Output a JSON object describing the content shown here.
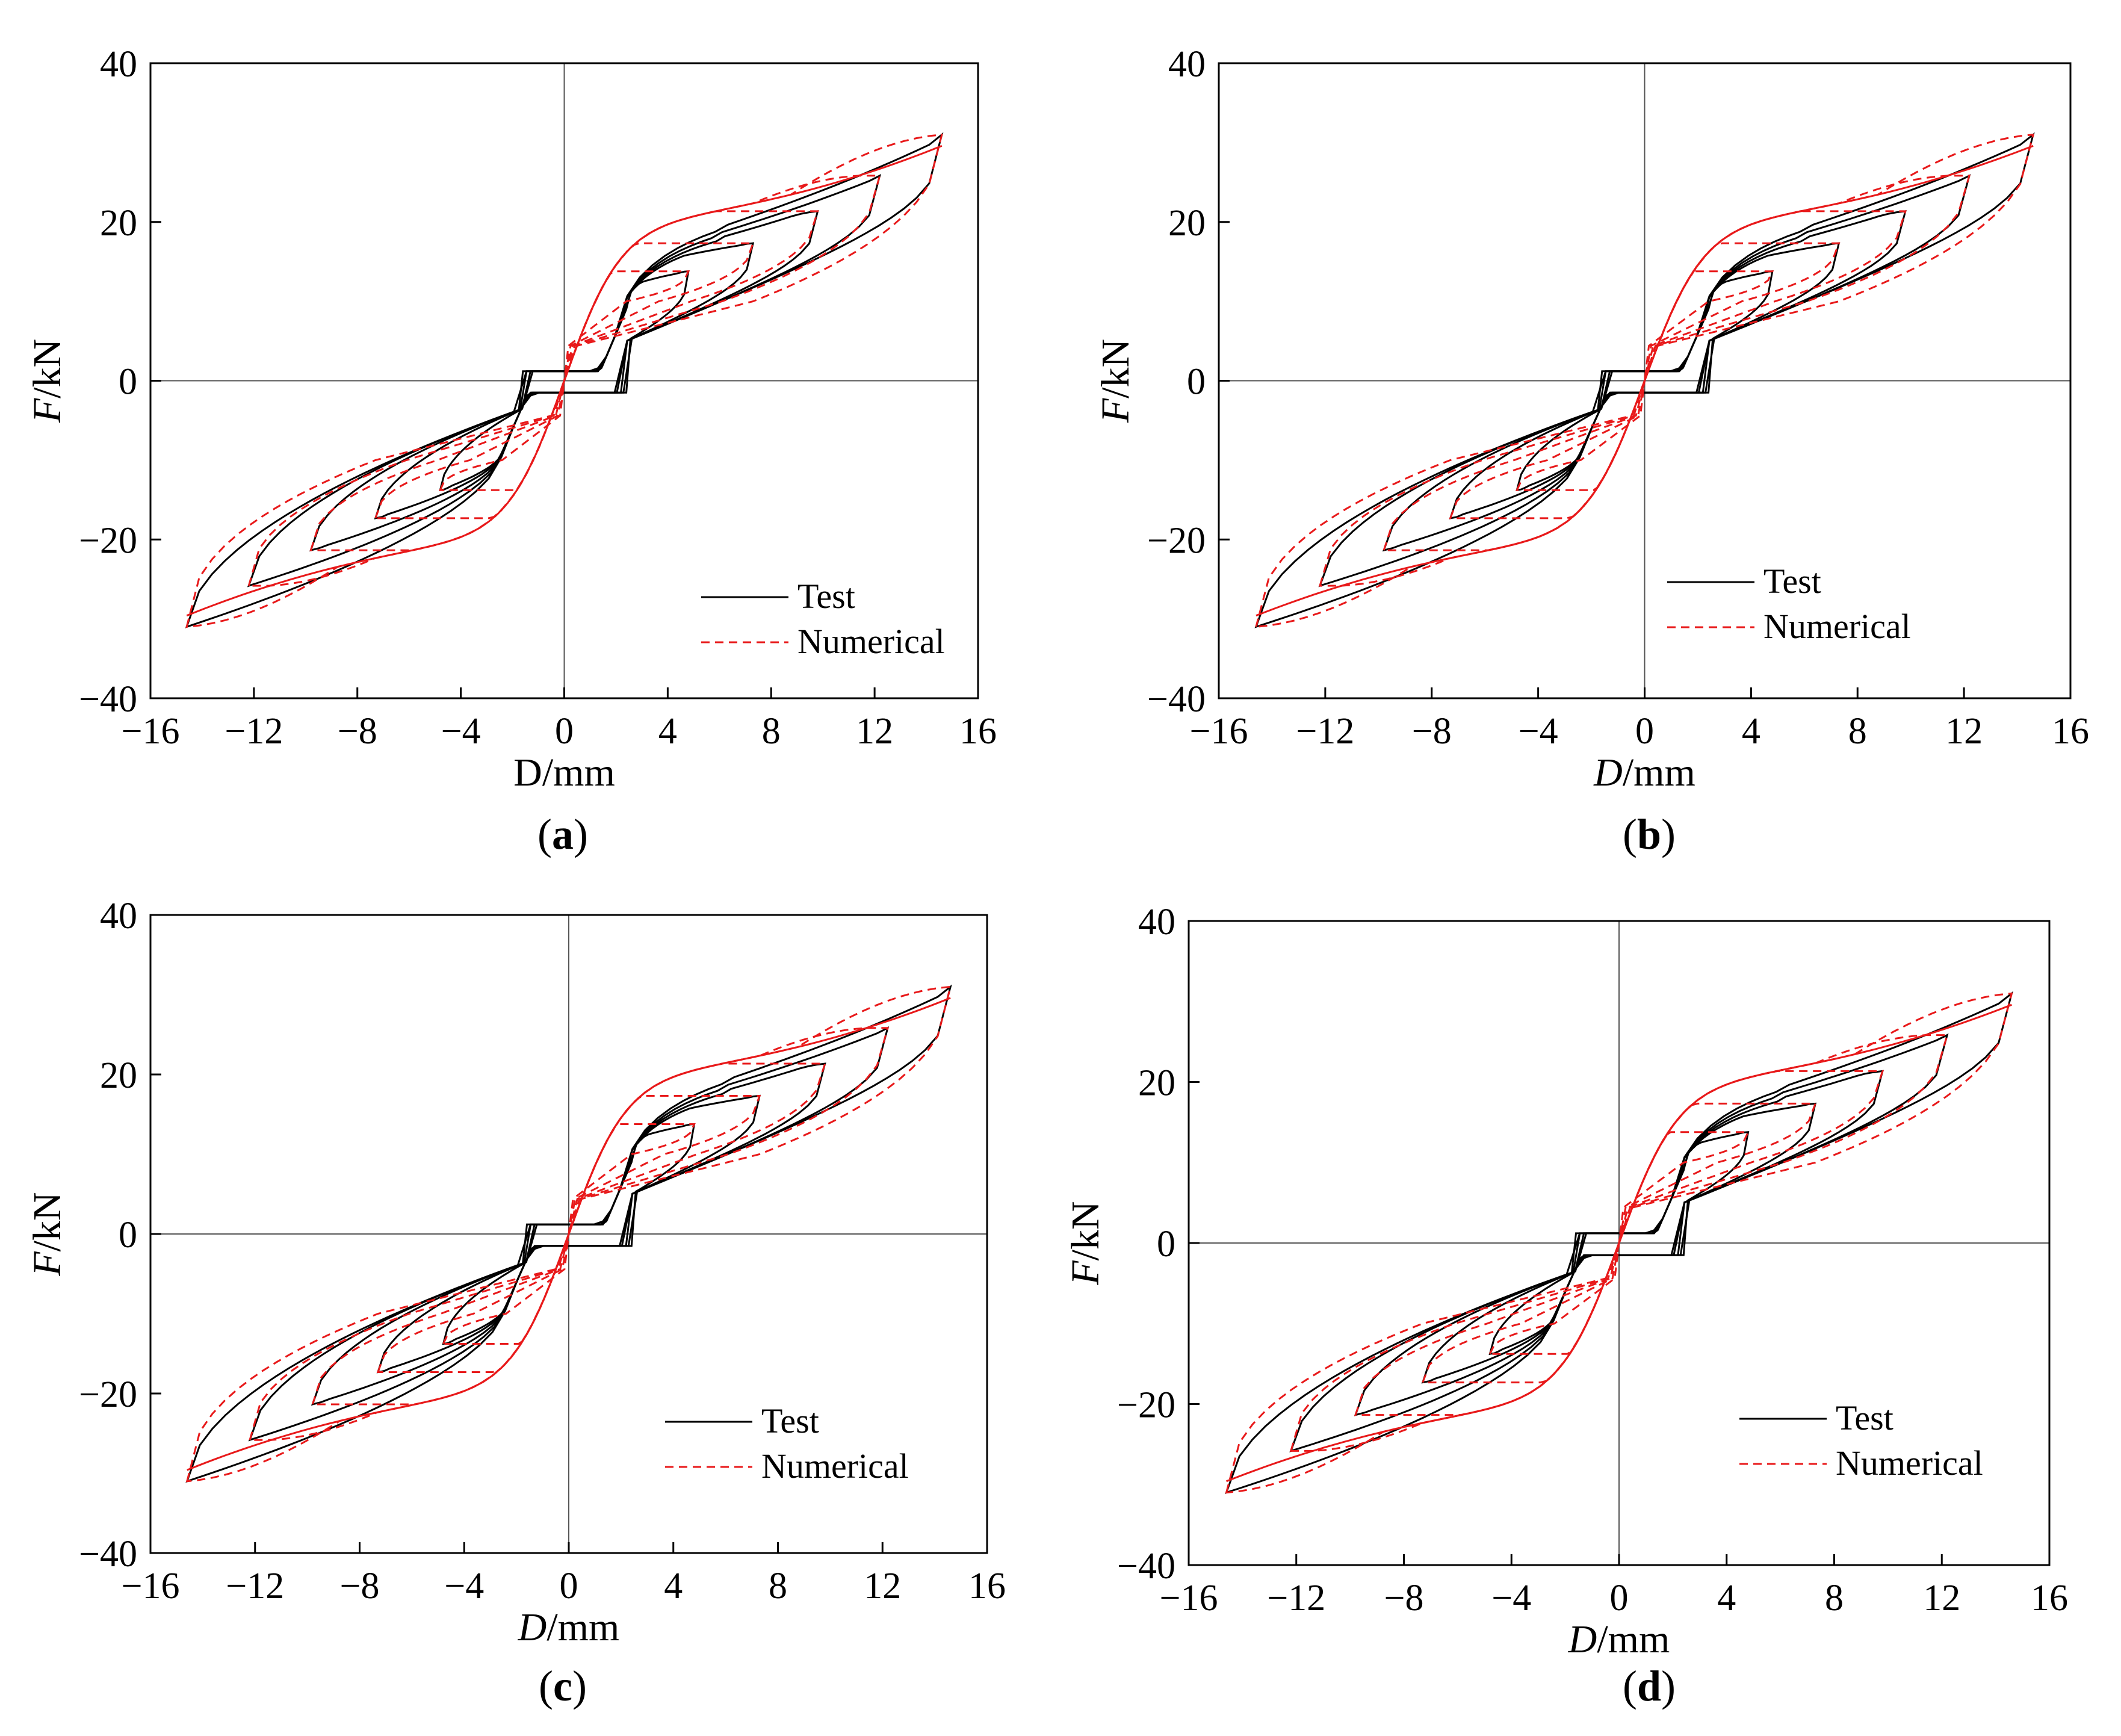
{
  "chart_data": [
    {
      "type": "line",
      "panel_label": "a",
      "xlabel": {
        "italic": "",
        "rest": "D/mm"
      },
      "ylabel": {
        "italic": "F",
        "rest": "/kN"
      },
      "xlim": [
        -16,
        16
      ],
      "ylim": [
        -40,
        40
      ],
      "xticks": [
        "−16",
        "−12",
        "−8",
        "−4",
        "0",
        "4",
        "8",
        "12",
        "16"
      ],
      "yticks": [
        "40",
        "20",
        "0",
        "−20",
        "−40"
      ],
      "legend": {
        "position": "bottom-right",
        "entries": [
          "Test",
          "Numerical"
        ]
      },
      "grid": false,
      "series": [
        {
          "name": "Test",
          "color": "#000000",
          "style": "solid",
          "amplitudes": [
            4.8,
            7.3,
            9.8,
            12.2,
            14.6
          ]
        },
        {
          "name": "Numerical",
          "color": "#e8191a",
          "style": "dashed",
          "amplitudes": [
            4.8,
            7.3,
            9.8,
            12.2,
            14.6
          ]
        }
      ]
    },
    {
      "type": "line",
      "panel_label": "b",
      "xlabel": {
        "italic": "D",
        "rest": "/mm"
      },
      "ylabel": {
        "italic": "F",
        "rest": "/kN"
      },
      "xlim": [
        -16,
        16
      ],
      "ylim": [
        -40,
        40
      ],
      "xticks": [
        "−16",
        "−12",
        "−8",
        "−4",
        "0",
        "4",
        "8",
        "12",
        "16"
      ],
      "yticks": [
        "40",
        "20",
        "0",
        "−20",
        "−40"
      ],
      "legend": {
        "position": "bottom-right",
        "entries": [
          "Test",
          "Numerical"
        ]
      },
      "grid": false,
      "series": [
        {
          "name": "Test",
          "color": "#000000",
          "style": "solid",
          "amplitudes": [
            4.8,
            7.3,
            9.8,
            12.2,
            14.6
          ]
        },
        {
          "name": "Numerical",
          "color": "#e8191a",
          "style": "dashed",
          "amplitudes": [
            4.8,
            7.3,
            9.8,
            12.2,
            14.6
          ]
        }
      ]
    },
    {
      "type": "line",
      "panel_label": "c",
      "xlabel": {
        "italic": "D",
        "rest": "/mm"
      },
      "ylabel": {
        "italic": "F",
        "rest": "/kN"
      },
      "xlim": [
        -16,
        16
      ],
      "ylim": [
        -40,
        40
      ],
      "xticks": [
        "−16",
        "−12",
        "−8",
        "−4",
        "0",
        "4",
        "8",
        "12",
        "16"
      ],
      "yticks": [
        "40",
        "20",
        "0",
        "−20",
        "−40"
      ],
      "legend": {
        "position": "bottom-right",
        "entries": [
          "Test",
          "Numerical"
        ]
      },
      "grid": false,
      "series": [
        {
          "name": "Test",
          "color": "#000000",
          "style": "solid",
          "amplitudes": [
            4.8,
            7.3,
            9.8,
            12.2,
            14.6
          ]
        },
        {
          "name": "Numerical",
          "color": "#e8191a",
          "style": "dashed",
          "amplitudes": [
            4.8,
            7.3,
            9.8,
            12.2,
            14.6
          ]
        }
      ]
    },
    {
      "type": "line",
      "panel_label": "d",
      "xlabel": {
        "italic": "D",
        "rest": "/mm"
      },
      "ylabel": {
        "italic": "F",
        "rest": "/kN"
      },
      "xlim": [
        -16,
        16
      ],
      "ylim": [
        -40,
        40
      ],
      "xticks": [
        "−16",
        "−12",
        "−8",
        "−4",
        "0",
        "4",
        "8",
        "12",
        "16"
      ],
      "yticks": [
        "40",
        "20",
        "0",
        "−20",
        "−40"
      ],
      "legend": {
        "position": "bottom-right",
        "entries": [
          "Test",
          "Numerical"
        ]
      },
      "grid": false,
      "series": [
        {
          "name": "Test",
          "color": "#000000",
          "style": "solid",
          "amplitudes": [
            4.8,
            7.3,
            9.8,
            12.2,
            14.6
          ]
        },
        {
          "name": "Numerical",
          "color": "#e8191a",
          "style": "dashed",
          "amplitudes": [
            4.8,
            7.3,
            9.8,
            12.2,
            14.6
          ]
        }
      ]
    }
  ]
}
